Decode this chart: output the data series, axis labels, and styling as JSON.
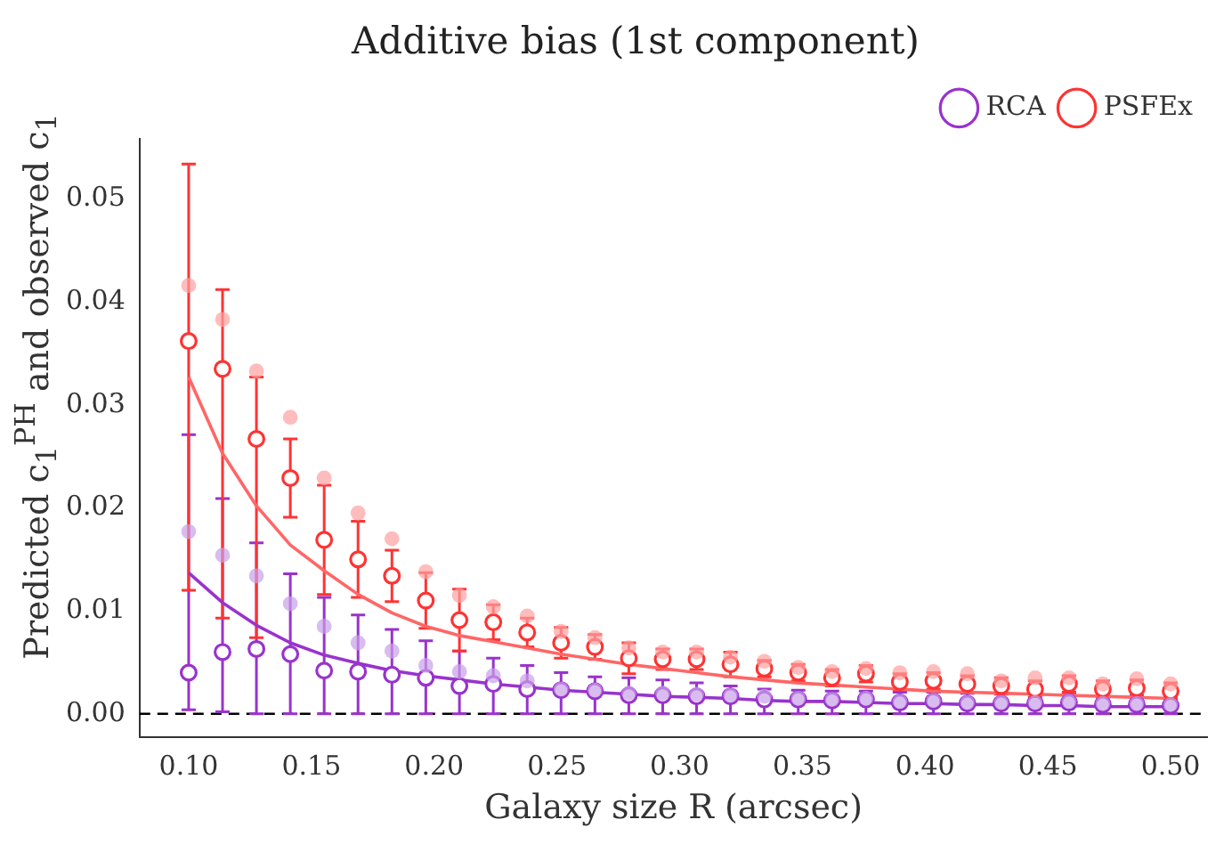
{
  "chart_data": {
    "type": "scatter",
    "title": "Additive bias (1st component)",
    "xlabel": "Galaxy size R (arcsec)",
    "ylabel": "Predicted c$_{1}$$^{PH}$ and observed c$_{1}$",
    "x": [
      0.1,
      0.1138,
      0.1276,
      0.1414,
      0.1552,
      0.169,
      0.1828,
      0.1966,
      0.2103,
      0.2241,
      0.2379,
      0.2517,
      0.2655,
      0.2793,
      0.2931,
      0.3069,
      0.3207,
      0.3345,
      0.3483,
      0.3621,
      0.3759,
      0.3897,
      0.4034,
      0.4172,
      0.431,
      0.4448,
      0.4586,
      0.4724,
      0.4862,
      0.5
    ],
    "series": [
      {
        "type": "line",
        "color": "#ff6666",
        "marker": "none",
        "values": [
          0.0327,
          0.0253,
          0.0202,
          0.0164,
          0.0139,
          0.0116,
          0.0098,
          0.0085,
          0.0076,
          0.007,
          0.0064,
          0.0058,
          0.0053,
          0.0048,
          0.0044,
          0.004,
          0.0036,
          0.0033,
          0.003,
          0.0028,
          0.0026,
          0.0024,
          0.0022,
          0.0021,
          0.002,
          0.0019,
          0.0018,
          0.0017,
          0.0016,
          0.0015
        ]
      },
      {
        "type": "line",
        "color": "#9933cc",
        "marker": "none",
        "values": [
          0.0137,
          0.0108,
          0.0086,
          0.0069,
          0.0057,
          0.0049,
          0.0042,
          0.0037,
          0.0033,
          0.0029,
          0.0026,
          0.0023,
          0.0021,
          0.0019,
          0.0017,
          0.0016,
          0.0015,
          0.0013,
          0.0012,
          0.0012,
          0.0011,
          0.001,
          0.001,
          0.0009,
          0.0009,
          0.0008,
          0.0008,
          0.0007,
          0.0007,
          0.0007
        ]
      },
      {
        "type": "scatter",
        "color": "#ffa0a0",
        "marker": "circle",
        "values": [
          0.0416,
          0.0383,
          0.0333,
          0.0288,
          0.0229,
          0.0195,
          0.017,
          0.0138,
          0.0115,
          0.0104,
          0.0095,
          0.008,
          0.0074,
          0.0064,
          0.006,
          0.006,
          0.0055,
          0.0051,
          0.0045,
          0.0041,
          0.0044,
          0.004,
          0.0041,
          0.0039,
          0.0032,
          0.0035,
          0.0035,
          0.0029,
          0.0034,
          0.0029
        ]
      },
      {
        "type": "scatter",
        "color": "#c9a0e8",
        "marker": "circle",
        "values": [
          0.0177,
          0.0154,
          0.0134,
          0.0107,
          0.0085,
          0.0069,
          0.0061,
          0.0047,
          0.0041,
          0.0037,
          0.0032,
          0.0024,
          0.0023,
          0.002,
          0.002,
          0.0019,
          0.0018,
          0.0017,
          0.0015,
          0.0014,
          0.0015,
          0.0012,
          0.0013,
          0.0011,
          0.0011,
          0.0011,
          0.0012,
          0.001,
          0.001,
          0.0009
        ]
      },
      {
        "type": "scatter",
        "name": "RCA",
        "color": "#9933cc",
        "marker": "circle",
        "values": [
          0.004,
          0.006,
          0.0063,
          0.0058,
          0.0042,
          0.0041,
          0.0038,
          0.0035,
          0.0027,
          0.0029,
          0.0024,
          0.0023,
          0.0022,
          0.0018,
          0.0018,
          0.0017,
          0.0017,
          0.0014,
          0.0014,
          0.0013,
          0.0014,
          0.0011,
          0.0012,
          0.001,
          0.001,
          0.001,
          0.0011,
          0.0009,
          0.0009,
          0.0008
        ],
        "errors": [
          [
            0.0004,
            0.0271
          ],
          [
            0.0002,
            0.0209
          ],
          [
            0,
            0.0166
          ],
          [
            0,
            0.0136
          ],
          [
            0,
            0.0113
          ],
          [
            0,
            0.0096
          ],
          [
            0,
            0.0082
          ],
          [
            0,
            0.0071
          ],
          [
            0,
            0.0061
          ],
          [
            0,
            0.0054
          ],
          [
            0,
            0.0047
          ],
          [
            0,
            0.004
          ],
          [
            0,
            0.0036
          ],
          [
            0,
            0.0035
          ],
          [
            0,
            0.0033
          ],
          [
            0,
            0.003
          ],
          [
            0,
            0.0027
          ],
          [
            0,
            0.0024
          ],
          [
            0,
            0.0023
          ],
          [
            0,
            0.0022
          ],
          [
            0,
            0.0022
          ],
          [
            0,
            0.0021
          ],
          [
            0,
            0.0021
          ],
          [
            0,
            0.002
          ],
          [
            0,
            0.002
          ],
          [
            0,
            0.0019
          ],
          [
            0,
            0.002
          ],
          [
            0,
            0.0018
          ],
          [
            0,
            0.0018
          ],
          [
            0,
            0.0017
          ]
        ]
      },
      {
        "type": "scatter",
        "name": "PSFEx",
        "color": "#ff3333",
        "marker": "circle",
        "values": [
          0.0362,
          0.0335,
          0.0267,
          0.0229,
          0.0169,
          0.015,
          0.0134,
          0.011,
          0.0091,
          0.0089,
          0.0079,
          0.0069,
          0.0065,
          0.0054,
          0.0053,
          0.0053,
          0.0048,
          0.0044,
          0.004,
          0.0035,
          0.0039,
          0.0031,
          0.0032,
          0.0029,
          0.0027,
          0.0024,
          0.0029,
          0.0024,
          0.0025,
          0.0022
        ],
        "errors": [
          [
            0.012,
            0.0534
          ],
          [
            0.0093,
            0.0412
          ],
          [
            0.0074,
            0.0327
          ],
          0.0038,
          0.0053,
          0.0037,
          0.0025,
          0.0027,
          0.003,
          0.0017,
          0.0014,
          0.0015,
          0.0012,
          0.0015,
          0.001,
          0.001,
          0.0012,
          0.0008,
          0.0008,
          0.0008,
          0.0008,
          0.0008,
          0.0008,
          0.0008,
          0.0008,
          0.0008,
          0.0008,
          0.0008,
          0.0008,
          0.0008
        ]
      }
    ],
    "xlim": [
      0.08,
      0.515
    ],
    "ylim": [
      -0.0023,
      0.0558
    ],
    "xticks": [
      {
        "value": 0.1,
        "label": "0.10"
      },
      {
        "value": 0.15,
        "label": "0.15"
      },
      {
        "value": 0.2,
        "label": "0.20"
      },
      {
        "value": 0.25,
        "label": "0.25"
      },
      {
        "value": 0.3,
        "label": "0.30"
      },
      {
        "value": 0.35,
        "label": "0.35"
      },
      {
        "value": 0.4,
        "label": "0.40"
      },
      {
        "value": 0.45,
        "label": "0.45"
      },
      {
        "value": 0.5,
        "label": "0.50"
      }
    ],
    "yticks": [
      {
        "value": 0,
        "label": "0.00"
      },
      {
        "value": 0.01,
        "label": "0.01"
      },
      {
        "value": 0.02,
        "label": "0.02"
      },
      {
        "value": 0.03,
        "label": "0.03"
      },
      {
        "value": 0.04,
        "label": "0.04"
      },
      {
        "value": 0.05,
        "label": "0.05"
      }
    ],
    "ref_lines": [
      {
        "axis": "y",
        "value": 0,
        "color": "#000000",
        "line_style": "dashed"
      }
    ],
    "grid": false,
    "legend": "top right"
  }
}
